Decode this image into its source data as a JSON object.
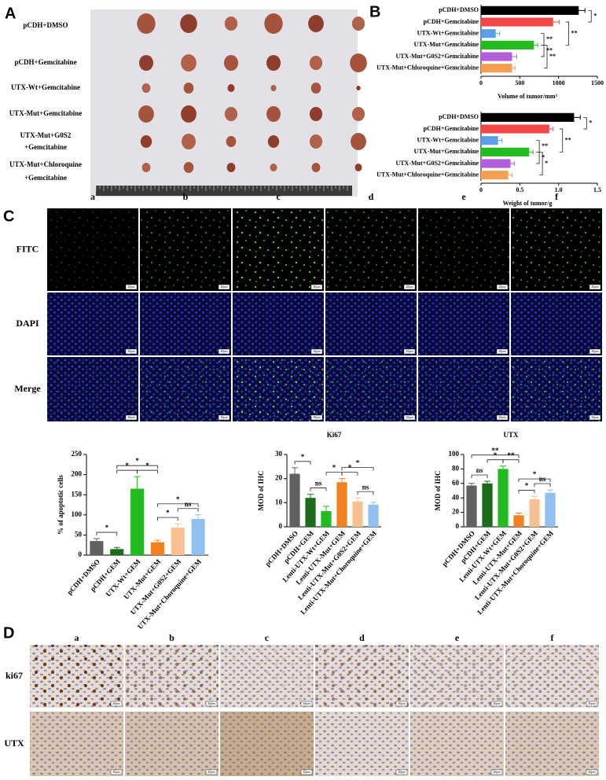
{
  "figure": {
    "panel_A": {
      "label": "A",
      "groups": [
        [
          "pCDH+DMSO"
        ],
        [
          "pCDH+Gemcitabine"
        ],
        [
          "UTX-Wt+Gemcitabine"
        ],
        [
          "UTX-Mut+Gemcitabine"
        ],
        [
          "UTX-Mut+G0S2",
          "+Gemcitabine"
        ],
        [
          "UTX-Mut+Chloroquine",
          "+Gemcitabine"
        ]
      ]
    },
    "panel_B": {
      "label": "B"
    },
    "panel_C": {
      "label": "C",
      "columns": [
        "a",
        "b",
        "c",
        "d",
        "e",
        "f"
      ],
      "rows": [
        "FITC",
        "DAPI",
        "Merge"
      ],
      "scale_bar": "20μm"
    },
    "panel_D": {
      "label": "D",
      "columns": [
        "a",
        "b",
        "c",
        "d",
        "e",
        "f"
      ],
      "rows": [
        "ki67",
        "UTX"
      ],
      "scale_bar": "20μm"
    }
  },
  "chart_data": [
    {
      "type": "hbar",
      "xlabel": "Volume of tumor/mm³",
      "categories": [
        "pCDH+DMSO",
        "pCDH+Gemcitabine",
        "UTX-Wt+Gemcitabine",
        "UTX-Mut+Gemcitabine",
        "UTX-Mut+G0S2+Gemcitabine",
        "UTX-Mut+Chloroquine+Gemcitabine"
      ],
      "values": [
        1260,
        930,
        190,
        680,
        400,
        400
      ],
      "errors": [
        80,
        80,
        50,
        50,
        60,
        40
      ],
      "colors": [
        "#000000",
        "#f04848",
        "#5aa0e8",
        "#22bb22",
        "#b060d8",
        "#f5a050"
      ],
      "xlim": [
        0,
        1500
      ],
      "xticks": [
        0,
        500,
        1000,
        1500
      ],
      "annotations": [
        "*",
        "**",
        "**",
        "**",
        "**"
      ]
    },
    {
      "type": "hbar",
      "xlabel": "Weight of tumor/g",
      "categories": [
        "pCDH+DMSO",
        "pCDH+Gemcitabine",
        "UTX-Wt+Gemcitabine",
        "UTX-Mut+Gemcitabine",
        "UTX-Mut+G0S2+Gemcitabine",
        "UTX-Mut+Chloroquine+Gemcitabine"
      ],
      "values": [
        1.2,
        0.88,
        0.22,
        0.62,
        0.38,
        0.35
      ],
      "errors": [
        0.08,
        0.05,
        0.05,
        0.05,
        0.05,
        0.05
      ],
      "colors": [
        "#000000",
        "#f04848",
        "#5aa0e8",
        "#22bb22",
        "#b060d8",
        "#f5a050"
      ],
      "xlim": [
        0,
        1.5
      ],
      "xticks": [
        0,
        0.5,
        {
          "value": 1,
          "label": "1.0"
        },
        1.5
      ],
      "annotations": [
        "*",
        "**",
        "**",
        "*",
        "*"
      ]
    },
    {
      "type": "vbar",
      "ylabel": "% of apoptotic cells",
      "categories": [
        "pCDH+DMSO",
        "pCDH+GEM",
        "UTX-Wt+GEM",
        "UTX-Mut+GEM",
        "UTX-Mut+G0S2+GEM",
        "UTX-Mut+Choroquine+GEM"
      ],
      "values": [
        35,
        15,
        165,
        32,
        68,
        90
      ],
      "errors": [
        6,
        4,
        30,
        5,
        10,
        10
      ],
      "colors": [
        "#606060",
        "#1a6b1a",
        "#22bb22",
        "#f08020",
        "#f8c090",
        "#90c0f0"
      ],
      "ylim": [
        0,
        250
      ],
      "yticks": [
        0,
        50,
        100,
        150,
        200,
        250
      ],
      "annotations": [
        "*",
        "*",
        "*",
        "*",
        "*",
        "*",
        "ns"
      ]
    },
    {
      "type": "vbar",
      "title": "Ki67",
      "ylabel": "MOD of IHC",
      "categories": [
        "pCDH+DMSO",
        "pCDH+GEM",
        "Lenti-UTX-Wt+GEM",
        "Lenti-UTX-Mut+GEM",
        "Lenti-UTX-Mut+G0S2+GEM",
        "Lenti-UTX-Mut+Choroquine+GEM"
      ],
      "values": [
        22,
        12,
        6.5,
        18.5,
        10.5,
        9.2
      ],
      "errors": [
        2.5,
        1.5,
        2,
        1.5,
        1.5,
        1
      ],
      "colors": [
        "#606060",
        "#1a6b1a",
        "#22bb22",
        "#f08020",
        "#f8c090",
        "#90c0f0"
      ],
      "ylim": [
        0,
        30
      ],
      "yticks": [
        0,
        10,
        20,
        30
      ],
      "annotations": [
        "*",
        "ns",
        "*",
        "*",
        "*",
        "ns"
      ]
    },
    {
      "type": "vbar",
      "title": "UTX",
      "ylabel": "MOD of IHC",
      "categories": [
        "pCDH+DMSO",
        "pCDH+GEM",
        "Lenti-UTX-Wt+GEM",
        "Lenti-UTX-Mut+GEM",
        "Lenti-UTX-Mut+G0S2+GEM",
        "Lenti-UTX-Mut+Choroquine+GEM"
      ],
      "values": [
        57,
        60,
        80,
        16,
        38,
        47
      ],
      "errors": [
        3,
        3,
        4,
        3,
        4,
        4
      ],
      "colors": [
        "#606060",
        "#1a6b1a",
        "#22bb22",
        "#f08020",
        "#f8c090",
        "#90c0f0"
      ],
      "ylim": [
        0,
        100
      ],
      "yticks": [
        0,
        20,
        40,
        60,
        80,
        100
      ],
      "annotations": [
        "ns",
        "*",
        "**",
        "**",
        "*",
        "*",
        "ns"
      ]
    }
  ]
}
